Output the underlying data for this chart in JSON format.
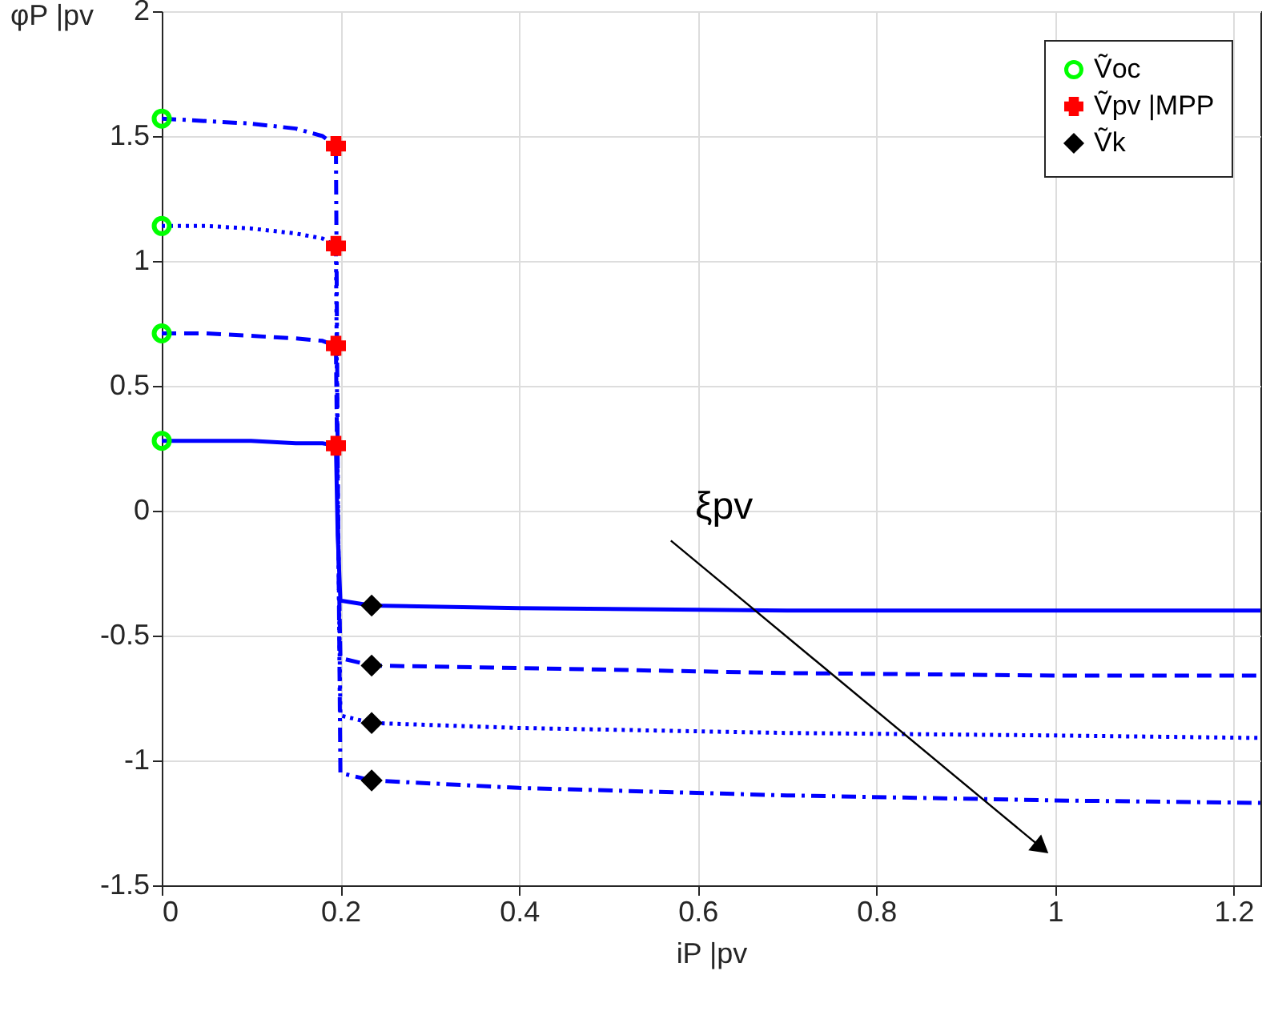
{
  "chart_data": {
    "type": "line",
    "xlabel": "iP |pv",
    "ylabel": "φP |pv",
    "xlim": [
      0,
      1.23
    ],
    "ylim": [
      -1.5,
      2
    ],
    "xticks": [
      0,
      0.2,
      0.4,
      0.6,
      0.8,
      1,
      1.2
    ],
    "yticks": [
      -1.5,
      -1,
      -0.5,
      0,
      0.5,
      1,
      1.5,
      2
    ],
    "grid": true,
    "legend": "top right",
    "annotations": [
      "ξpv"
    ],
    "series": [
      {
        "color": "#0000ff",
        "line_style": "solid",
        "x": [
          0,
          0.05,
          0.1,
          0.15,
          0.18,
          0.195,
          0.197,
          0.2,
          0.235,
          0.4,
          0.7,
          1.0,
          1.23
        ],
        "values": [
          0.28,
          0.28,
          0.28,
          0.27,
          0.27,
          0.26,
          -0.1,
          -0.36,
          -0.38,
          -0.39,
          -0.4,
          -0.4,
          -0.4
        ]
      },
      {
        "color": "#0000ff",
        "line_style": "dashed",
        "x": [
          0,
          0.05,
          0.1,
          0.15,
          0.18,
          0.195,
          0.197,
          0.2,
          0.235,
          0.4,
          0.7,
          1.0,
          1.23
        ],
        "values": [
          0.71,
          0.71,
          0.7,
          0.69,
          0.68,
          0.66,
          0.0,
          -0.59,
          -0.62,
          -0.63,
          -0.65,
          -0.66,
          -0.66
        ]
      },
      {
        "color": "#0000ff",
        "line_style": "dotted",
        "x": [
          0,
          0.05,
          0.1,
          0.15,
          0.18,
          0.195,
          0.197,
          0.2,
          0.235,
          0.4,
          0.7,
          1.0,
          1.23
        ],
        "values": [
          1.14,
          1.14,
          1.13,
          1.11,
          1.09,
          1.06,
          0.1,
          -0.82,
          -0.85,
          -0.87,
          -0.89,
          -0.9,
          -0.91
        ]
      },
      {
        "color": "#0000ff",
        "line_style": "dashdot",
        "x": [
          0,
          0.05,
          0.1,
          0.15,
          0.18,
          0.195,
          0.197,
          0.2,
          0.235,
          0.4,
          0.7,
          1.0,
          1.23
        ],
        "values": [
          1.57,
          1.56,
          1.55,
          1.53,
          1.5,
          1.46,
          0.2,
          -1.05,
          -1.08,
          -1.11,
          -1.14,
          -1.16,
          -1.17
        ]
      },
      {
        "type": "scatter",
        "name": "Ṽoc",
        "color": "#00ff00",
        "marker": "circle",
        "x": [
          0,
          0,
          0,
          0
        ],
        "values": [
          0.28,
          0.71,
          1.14,
          1.57
        ]
      },
      {
        "type": "scatter",
        "name": "Ṽpv |MPP",
        "color": "#ff0000",
        "marker": "cross",
        "x": [
          0.195,
          0.195,
          0.195,
          0.195
        ],
        "values": [
          0.26,
          0.66,
          1.06,
          1.46
        ]
      },
      {
        "type": "scatter",
        "name": "Ṽk",
        "color": "#000000",
        "marker": "diamond",
        "x": [
          0.235,
          0.235,
          0.235,
          0.235
        ],
        "values": [
          -0.38,
          -0.62,
          -0.85,
          -1.08
        ]
      }
    ]
  }
}
